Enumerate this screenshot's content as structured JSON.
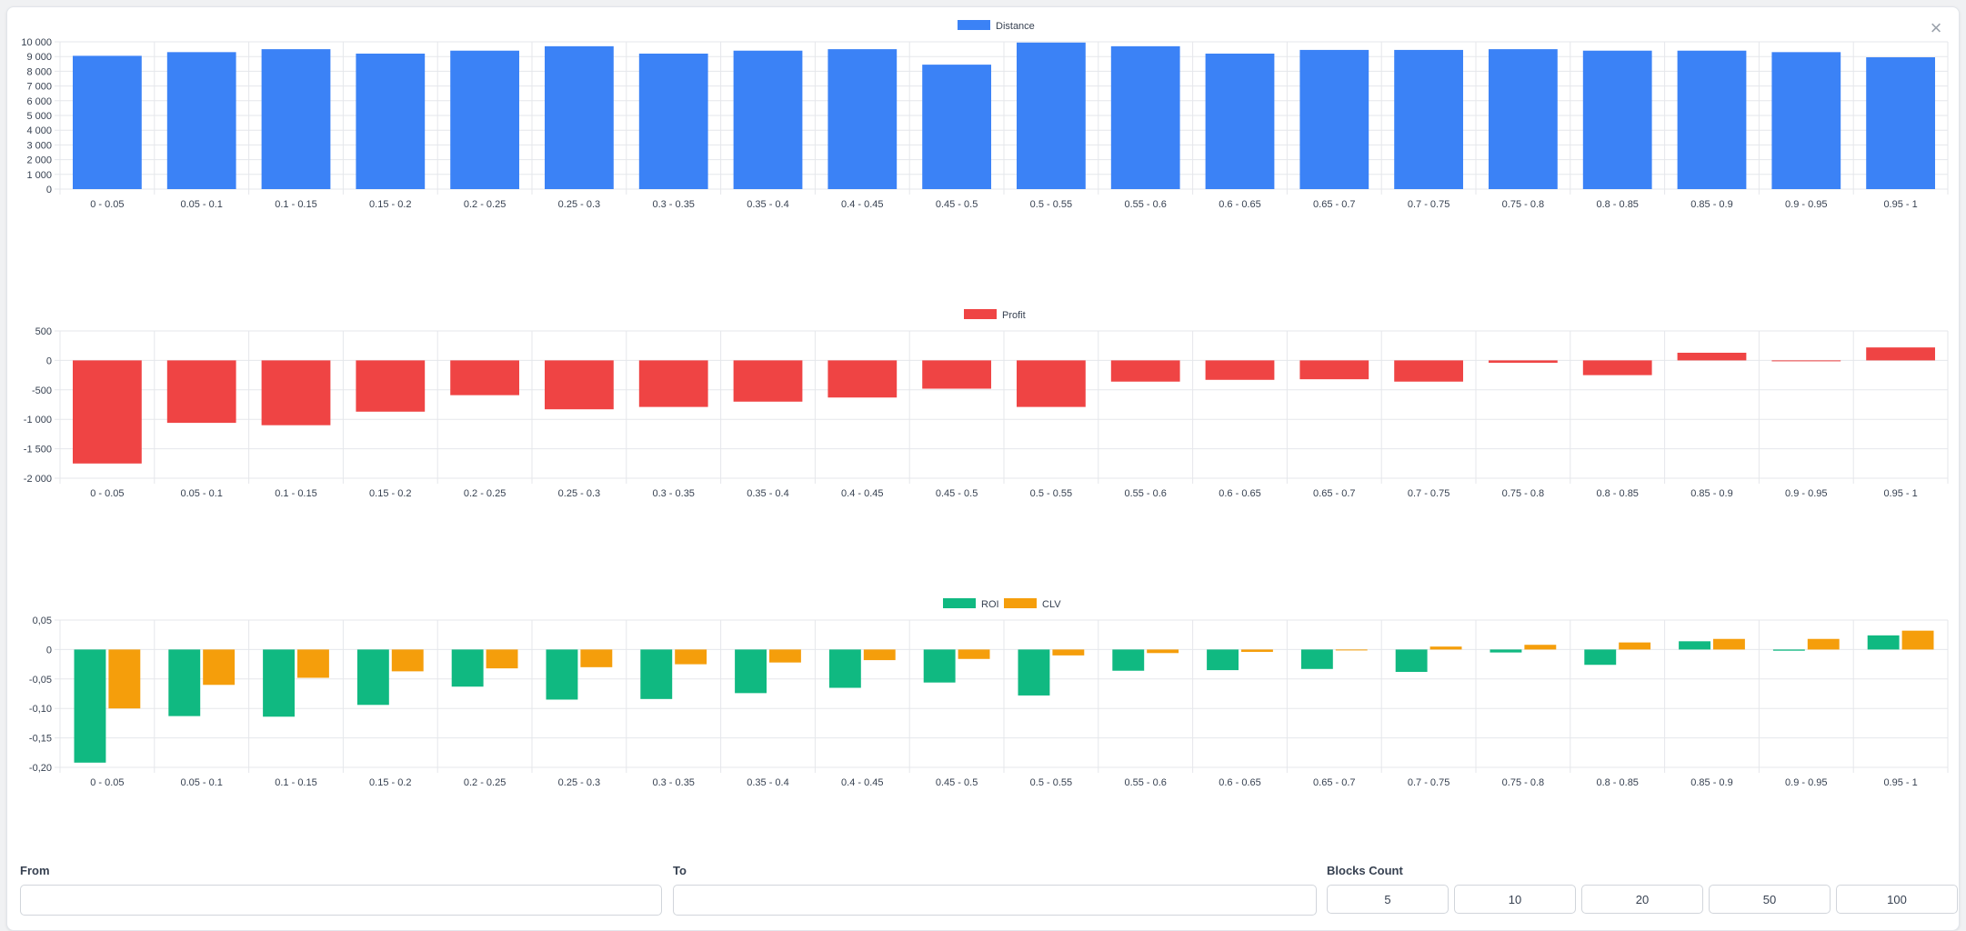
{
  "dialog": {
    "close_icon": "close-icon",
    "close_glyph": "×"
  },
  "colors": {
    "distance": "#3b82f6",
    "profit": "#ef4444",
    "roi": "#10b981",
    "clv": "#f59e0b",
    "grid": "#e5e7eb",
    "tick": "#374151"
  },
  "chart_data": [
    {
      "type": "bar",
      "categories": [
        "0 - 0.05",
        "0.05 - 0.1",
        "0.1 - 0.15",
        "0.15 - 0.2",
        "0.2 - 0.25",
        "0.25 - 0.3",
        "0.3 - 0.35",
        "0.35 - 0.4",
        "0.4 - 0.45",
        "0.45 - 0.5",
        "0.5 - 0.55",
        "0.55 - 0.6",
        "0.6 - 0.65",
        "0.65 - 0.7",
        "0.7 - 0.75",
        "0.75 - 0.8",
        "0.8 - 0.85",
        "0.85 - 0.9",
        "0.9 - 0.95",
        "0.95 - 1"
      ],
      "series": [
        {
          "name": "Distance",
          "color": "#3b82f6",
          "values": [
            9050,
            9300,
            9500,
            9200,
            9400,
            9700,
            9200,
            9400,
            9500,
            8450,
            9950,
            9700,
            9200,
            9450,
            9450,
            9500,
            9400,
            9400,
            9300,
            8950
          ]
        }
      ],
      "ylim": [
        0,
        10000
      ],
      "yticks": [
        0,
        1000,
        2000,
        3000,
        4000,
        5000,
        6000,
        7000,
        8000,
        9000,
        10000
      ],
      "ytick_labels": [
        "0",
        "1 000",
        "2 000",
        "3 000",
        "4 000",
        "5 000",
        "6 000",
        "7 000",
        "8 000",
        "9 000",
        "10 000"
      ],
      "grid": true,
      "legend": "top-center"
    },
    {
      "type": "bar",
      "categories": [
        "0 - 0.05",
        "0.05 - 0.1",
        "0.1 - 0.15",
        "0.15 - 0.2",
        "0.2 - 0.25",
        "0.25 - 0.3",
        "0.3 - 0.35",
        "0.35 - 0.4",
        "0.4 - 0.45",
        "0.45 - 0.5",
        "0.5 - 0.55",
        "0.55 - 0.6",
        "0.6 - 0.65",
        "0.65 - 0.7",
        "0.7 - 0.75",
        "0.75 - 0.8",
        "0.8 - 0.85",
        "0.85 - 0.9",
        "0.9 - 0.95",
        "0.95 - 1"
      ],
      "series": [
        {
          "name": "Profit",
          "color": "#ef4444",
          "values": [
            -1750,
            -1060,
            -1100,
            -870,
            -590,
            -830,
            -790,
            -700,
            -630,
            -480,
            -790,
            -360,
            -330,
            -320,
            -360,
            -40,
            -250,
            130,
            -15,
            220
          ]
        }
      ],
      "ylim": [
        -2000,
        500
      ],
      "yticks": [
        -2000,
        -1500,
        -1000,
        -500,
        0,
        500
      ],
      "ytick_labels": [
        "-2 000",
        "-1 500",
        "-1 000",
        "-500",
        "0",
        "500"
      ],
      "grid": true,
      "legend": "top-center"
    },
    {
      "type": "bar",
      "categories": [
        "0 - 0.05",
        "0.05 - 0.1",
        "0.1 - 0.15",
        "0.15 - 0.2",
        "0.2 - 0.25",
        "0.25 - 0.3",
        "0.3 - 0.35",
        "0.35 - 0.4",
        "0.4 - 0.45",
        "0.45 - 0.5",
        "0.5 - 0.55",
        "0.55 - 0.6",
        "0.6 - 0.65",
        "0.65 - 0.7",
        "0.7 - 0.75",
        "0.75 - 0.8",
        "0.8 - 0.85",
        "0.85 - 0.9",
        "0.9 - 0.95",
        "0.95 - 1"
      ],
      "series": [
        {
          "name": "ROI",
          "color": "#10b981",
          "values": [
            -0.192,
            -0.113,
            -0.114,
            -0.094,
            -0.063,
            -0.085,
            -0.084,
            -0.074,
            -0.065,
            -0.056,
            -0.078,
            -0.036,
            -0.035,
            -0.033,
            -0.038,
            -0.005,
            -0.026,
            0.014,
            -0.002,
            0.024
          ]
        },
        {
          "name": "CLV",
          "color": "#f59e0b",
          "values": [
            -0.1,
            -0.06,
            -0.048,
            -0.037,
            -0.032,
            -0.03,
            -0.025,
            -0.022,
            -0.018,
            -0.016,
            -0.01,
            -0.006,
            -0.004,
            0.0,
            0.005,
            0.008,
            0.012,
            0.018,
            0.018,
            0.032
          ]
        }
      ],
      "ylim": [
        -0.2,
        0.05
      ],
      "yticks": [
        -0.2,
        -0.15,
        -0.1,
        -0.05,
        0,
        0.05
      ],
      "ytick_labels": [
        "-0,20",
        "-0,15",
        "-0,10",
        "-0,05",
        "0",
        "0,05"
      ],
      "grid": true,
      "legend": "top-center"
    }
  ],
  "controls": {
    "from": {
      "label": "From",
      "value": "",
      "placeholder": ""
    },
    "to": {
      "label": "To",
      "value": "",
      "placeholder": ""
    },
    "blocks": {
      "label": "Blocks Count",
      "options": [
        "5",
        "10",
        "20",
        "50",
        "100"
      ]
    }
  }
}
